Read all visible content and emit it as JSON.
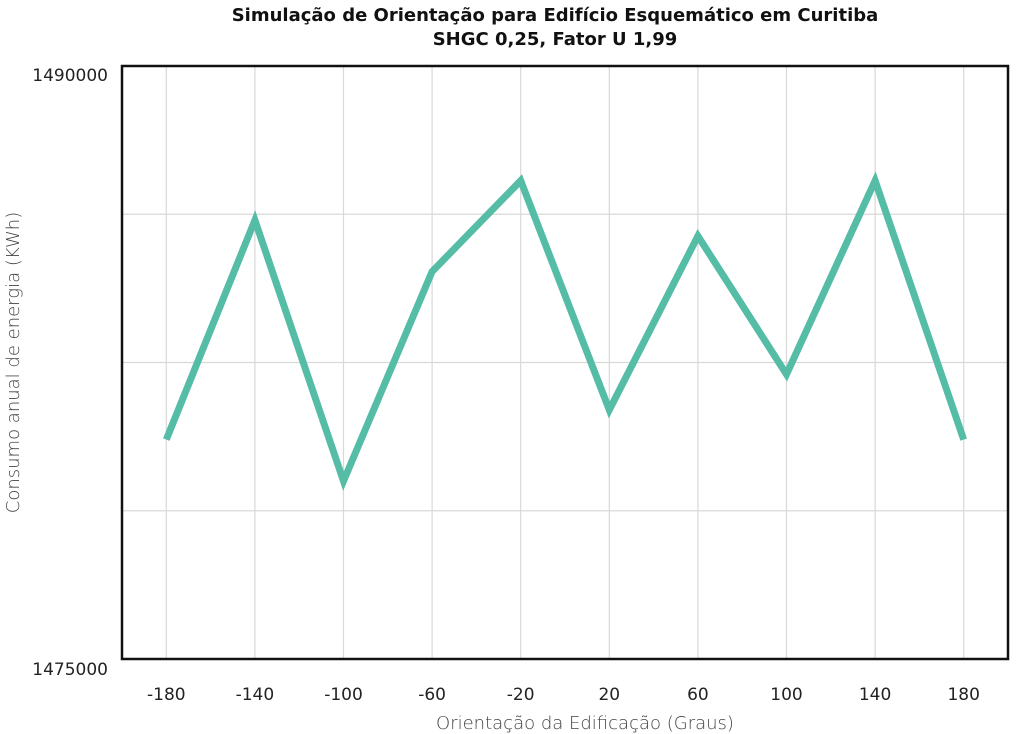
{
  "chart_data": {
    "type": "line",
    "title": "Simulação de Orientação para Edifício Esquemático em Curitiba",
    "subtitle": "SHGC 0,25, Fator U 1,99",
    "xlabel": "Orientação da Edificação (Graus)",
    "ylabel": "Consumo anual de energia (KWh)",
    "x": [
      -180,
      -140,
      -100,
      -60,
      -20,
      20,
      60,
      100,
      140,
      180
    ],
    "x_tick_labels": [
      "-180",
      "-140",
      "-100",
      "-60",
      "-20",
      "20",
      "60",
      "100",
      "140",
      "180"
    ],
    "y_tick_labels": [
      "1490000",
      "1475000"
    ],
    "ylim": [
      1475000,
      1490000
    ],
    "xlim": [
      -200,
      200
    ],
    "grid": true,
    "legend": "none",
    "series": [
      {
        "values": [
          1480550,
          1486100,
          1479500,
          1484800,
          1487100,
          1481300,
          1485700,
          1482200,
          1487100,
          1480550
        ],
        "color": "#55bca6"
      }
    ],
    "grid_color": "#d9d9d9",
    "axis_color": "#111111"
  }
}
